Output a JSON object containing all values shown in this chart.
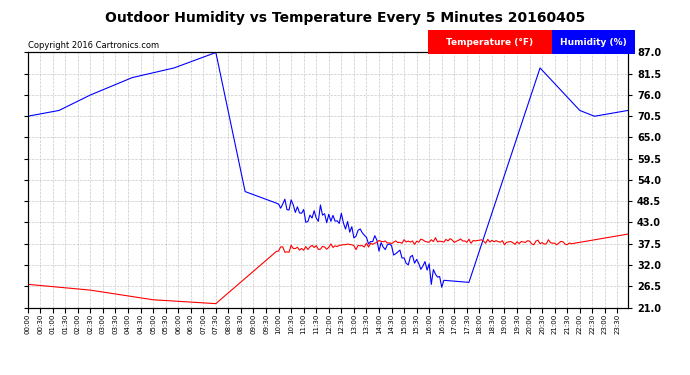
{
  "title": "Outdoor Humidity vs Temperature Every 5 Minutes 20160405",
  "copyright": "Copyright 2016 Cartronics.com",
  "legend_temp": "Temperature (°F)",
  "legend_hum": "Humidity (%)",
  "temp_color": "#FF0000",
  "hum_color": "#0000FF",
  "bg_color": "#FFFFFF",
  "grid_color": "#AAAAAA",
  "ylim": [
    21.0,
    87.0
  ],
  "yticks": [
    21.0,
    26.5,
    32.0,
    37.5,
    43.0,
    48.5,
    54.0,
    59.5,
    65.0,
    70.5,
    76.0,
    81.5,
    87.0
  ]
}
